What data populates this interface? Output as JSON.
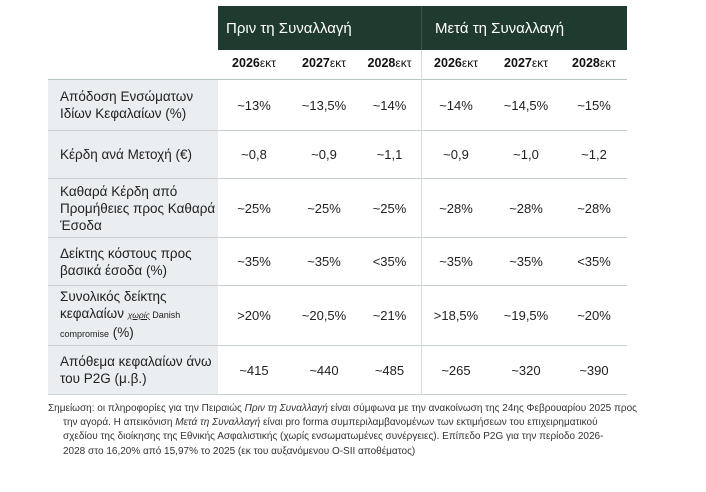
{
  "header": {
    "before": "Πριν τη Συναλλαγή",
    "after": "Μετά τη Συναλλαγή"
  },
  "years": [
    {
      "y": "2026",
      "s": "εκτ"
    },
    {
      "y": "2027",
      "s": "εκτ"
    },
    {
      "y": "2028",
      "s": "εκτ"
    },
    {
      "y": "2026",
      "s": "εκτ"
    },
    {
      "y": "2027",
      "s": "εκτ"
    },
    {
      "y": "2028",
      "s": "εκτ"
    }
  ],
  "rows": [
    {
      "label1": "Απόδοση Ενσώματων",
      "label2": "Ιδίων Κεφαλαίων (%)",
      "values": [
        "~13%",
        "~13,5%",
        "~14%",
        "~14%",
        "~14,5%",
        "~15%"
      ]
    },
    {
      "label1": "Κέρδη ανά Μετοχή (€)",
      "values": [
        "~0,8",
        "~0,9",
        "~1,1",
        "~0,9",
        "~1,0",
        "~1,2"
      ]
    },
    {
      "label1": "Καθαρά Κέρδη από",
      "label2": "Προμήθειες προς Καθαρά",
      "label3": "Έσοδα",
      "values": [
        "~25%",
        "~25%",
        "~25%",
        "~28%",
        "~28%",
        "~28%"
      ]
    },
    {
      "label1": "Δείκτης κόστους προς",
      "label2": "βασικά έσοδα (%)",
      "values": [
        "~35%",
        "~35%",
        "<35%",
        "~35%",
        "~35%",
        "<35%"
      ]
    },
    {
      "label1": "Συνολικός δείκτης",
      "label2a": "κεφαλαίων ",
      "label2b": "χωρίς",
      "label2c": " Danish",
      "label3a": "compromise",
      "label3b": " (%)",
      "values": [
        ">20%",
        "~20,5%",
        "~21%",
        ">18,5%",
        "~19,5%",
        "~20%"
      ]
    },
    {
      "label1": "Απόθεμα κεφαλαίων άνω",
      "label2": "του P2G (μ.β.)",
      "values": [
        "~415",
        "~440",
        "~485",
        "~265",
        "~320",
        "~390"
      ]
    }
  ],
  "note": {
    "l1a": "Σημείωση: οι πληροφορίες για την Πειραιώς ",
    "l1b": "Πριν τη Συναλλαγή",
    "l1c": " είναι σύμφωνα με την ανακοίνωση της 24ης Φεβρουαρίου 2025 προς",
    "l2a": "την αγορά. Η απεικόνιση ",
    "l2b": "Μετά τη Συναλλαγή",
    "l2c": " είναι pro forma συμπεριλαμβανομένων των εκτιμήσεων του επιχειρηματικού",
    "l3": "σχεδίου της διοίκησης της Εθνικής Ασφαλιστικής (χωρίς ενσωματωμένες συνέργειες). Επίπεδο P2G για την περίοδο 2026-",
    "l4": "2028 στο 16,20% από 15,97% το 2025 (εκ του αυξανόμενου O-SII αποθέματος)"
  }
}
